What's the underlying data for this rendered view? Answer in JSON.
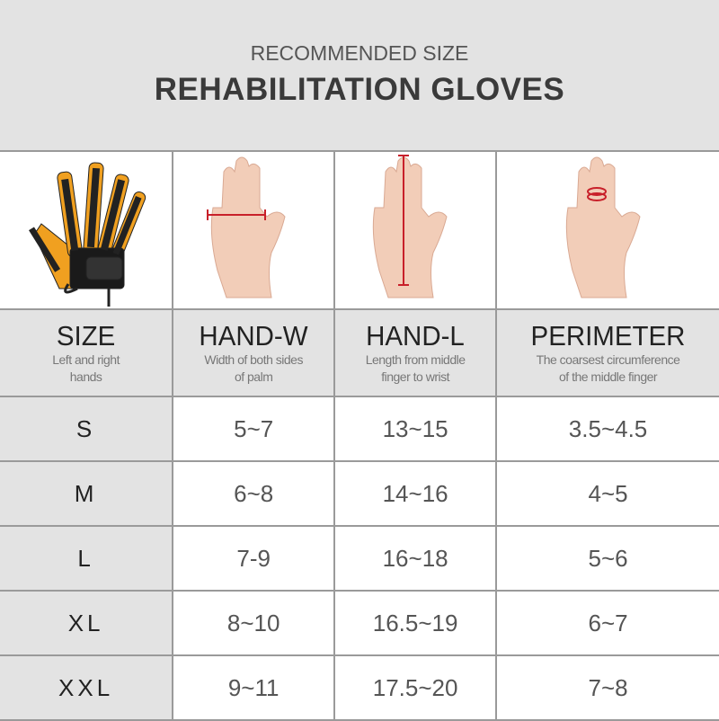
{
  "header": {
    "subtitle": "RECOMMENDED SIZE",
    "title": "REHABILITATION GLOVES"
  },
  "colors": {
    "glove_orange": "#f0a020",
    "measure_red": "#c8202a",
    "background_gray": "#e3e3e3"
  },
  "columns": [
    {
      "title": "SIZE",
      "desc": [
        "Left and right",
        "hands"
      ]
    },
    {
      "title": "HAND-W",
      "desc": [
        "Width of both sides",
        "of palm"
      ]
    },
    {
      "title": "HAND-L",
      "desc": [
        "Length from middle",
        "finger to wrist"
      ]
    },
    {
      "title": "PERIMETER",
      "desc": [
        "The coarsest circumference",
        "of the middle finger"
      ]
    }
  ],
  "rows": [
    {
      "size": "S",
      "hand_w": "5~7",
      "hand_l": "13~15",
      "perimeter": "3.5~4.5"
    },
    {
      "size": "M",
      "hand_w": "6~8",
      "hand_l": "14~16",
      "perimeter": "4~5"
    },
    {
      "size": "L",
      "hand_w": "7-9",
      "hand_l": "16~18",
      "perimeter": "5~6"
    },
    {
      "size": "XL",
      "hand_w": "8~10",
      "hand_l": "16.5~19",
      "perimeter": "6~7"
    },
    {
      "size": "XXL",
      "hand_w": "9~11",
      "hand_l": "17.5~20",
      "perimeter": "7~8"
    }
  ]
}
